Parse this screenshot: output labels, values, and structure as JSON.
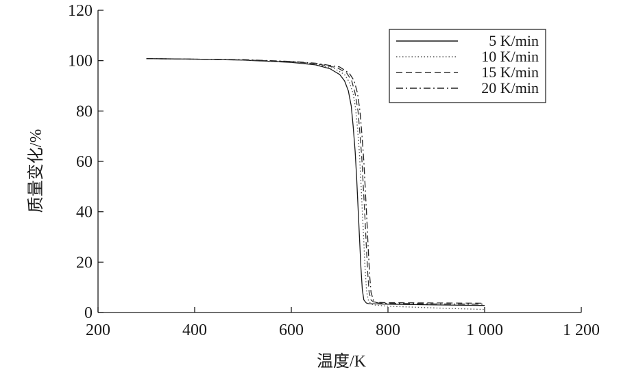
{
  "chart_data": {
    "type": "line",
    "xlabel": "温度/K",
    "ylabel": "质量变化/%",
    "xlim": [
      200,
      1200
    ],
    "ylim": [
      0,
      120
    ],
    "x_ticks": [
      200,
      400,
      600,
      800,
      1000,
      1200
    ],
    "x_tick_labels": [
      "200",
      "400",
      "600",
      "800",
      "1 000",
      "1 200"
    ],
    "y_ticks": [
      0,
      20,
      40,
      60,
      80,
      100,
      120
    ],
    "y_tick_labels": [
      "0",
      "20",
      "40",
      "60",
      "80",
      "100",
      "120"
    ],
    "grid": false,
    "legend_position": "top-right",
    "series": [
      {
        "name": "5 K/min",
        "dash": "solid",
        "color": "#1a1a1a",
        "x": [
          300,
          400,
          500,
          600,
          650,
          680,
          700,
          710,
          718,
          724,
          728,
          732,
          735,
          738,
          741,
          744,
          747,
          750,
          755,
          760,
          780,
          800,
          900,
          1000
        ],
        "y": [
          100.8,
          100.6,
          100.2,
          99.3,
          98.3,
          96.8,
          94.5,
          92.0,
          88.0,
          82.0,
          74.0,
          64.0,
          54.0,
          42.0,
          30.0,
          18.0,
          9.0,
          5.0,
          3.8,
          3.5,
          3.4,
          3.3,
          3.0,
          2.8
        ]
      },
      {
        "name": "10 K/min",
        "dash": "dotted",
        "color": "#555555",
        "x": [
          300,
          400,
          500,
          600,
          650,
          690,
          710,
          720,
          728,
          733,
          737,
          741,
          744,
          747,
          750,
          753,
          756,
          760,
          765,
          770,
          800,
          900,
          1000
        ],
        "y": [
          100.8,
          100.6,
          100.3,
          99.5,
          98.6,
          96.8,
          94.5,
          91.5,
          87.0,
          81.0,
          73.0,
          63.0,
          52.0,
          40.0,
          28.0,
          16.0,
          8.0,
          4.5,
          3.5,
          3.0,
          2.5,
          1.8,
          1.2
        ]
      },
      {
        "name": "15 K/min",
        "dash": "dashed",
        "color": "#333333",
        "x": [
          300,
          400,
          500,
          600,
          650,
          695,
          715,
          725,
          732,
          738,
          742,
          746,
          749,
          752,
          755,
          758,
          761,
          765,
          770,
          780,
          800,
          900,
          1000
        ],
        "y": [
          100.8,
          100.6,
          100.3,
          99.6,
          98.8,
          97.2,
          95.0,
          92.0,
          87.0,
          80.0,
          71.0,
          61.0,
          50.0,
          39.0,
          27.0,
          16.0,
          8.0,
          5.0,
          4.2,
          4.0,
          3.9,
          3.8,
          3.7
        ]
      },
      {
        "name": "20 K/min",
        "dash": "dashdot",
        "color": "#222222",
        "x": [
          300,
          400,
          500,
          600,
          650,
          700,
          720,
          730,
          737,
          742,
          746,
          750,
          753,
          756,
          759,
          762,
          765,
          770,
          775,
          780,
          800,
          900,
          1000
        ],
        "y": [
          100.8,
          100.6,
          100.4,
          99.7,
          99.0,
          97.5,
          95.0,
          92.0,
          87.0,
          80.0,
          71.0,
          60.0,
          49.0,
          38.0,
          26.0,
          15.0,
          8.0,
          4.8,
          4.0,
          3.8,
          3.6,
          3.4,
          3.3
        ]
      }
    ]
  }
}
